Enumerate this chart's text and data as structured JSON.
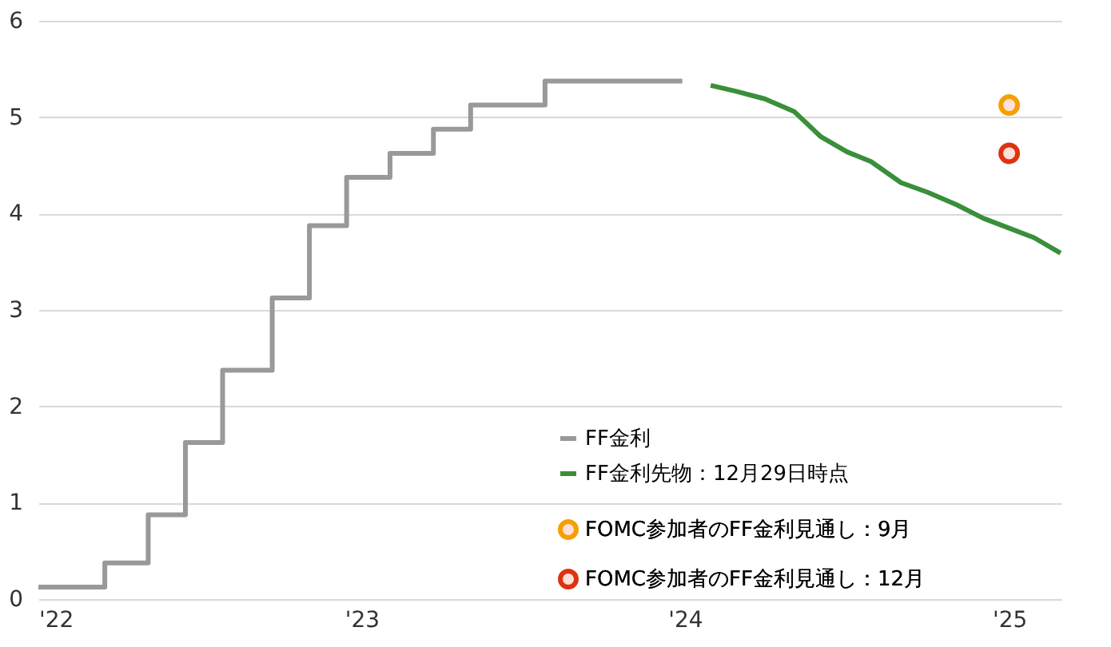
{
  "chart_data": {
    "type": "line",
    "xlim": [
      "2022-01-01",
      "2025-03-01"
    ],
    "xticks": [
      {
        "value": "2022-01-01",
        "label": "'22"
      },
      {
        "value": "2023-01-01",
        "label": "'23"
      },
      {
        "value": "2024-01-01",
        "label": "'24"
      },
      {
        "value": "2025-01-01",
        "label": "'25"
      }
    ],
    "ylim": [
      0,
      6
    ],
    "yticks": [
      0,
      1,
      2,
      3,
      4,
      5,
      6
    ],
    "grid": "y",
    "legend": "bottom right",
    "series": [
      {
        "name": "FF金利",
        "type": "step",
        "color": "#999999",
        "x": [
          "2022-01-01",
          "2022-03-17",
          "2022-05-05",
          "2022-06-16",
          "2022-07-28",
          "2022-09-22",
          "2022-11-03",
          "2022-12-15",
          "2023-02-02",
          "2023-03-23",
          "2023-05-04",
          "2023-07-27",
          "2023-12-29"
        ],
        "values": [
          0.125,
          0.375,
          0.875,
          1.625,
          2.375,
          3.125,
          3.875,
          4.375,
          4.625,
          4.875,
          5.125,
          5.375,
          5.375
        ]
      },
      {
        "name": "FF金利先物：12月29日時点",
        "color": "#3a8f3a",
        "x": [
          "2024-01-30",
          "2024-02-27",
          "2024-03-31",
          "2024-05-03",
          "2024-06-02",
          "2024-07-02",
          "2024-07-29",
          "2024-09-01",
          "2024-10-01",
          "2024-11-03",
          "2024-12-03",
          "2025-01-29",
          "2025-02-28"
        ],
        "values": [
          5.33,
          5.27,
          5.19,
          5.06,
          4.8,
          4.64,
          4.54,
          4.32,
          4.22,
          4.09,
          3.95,
          3.75,
          3.59
        ]
      },
      {
        "name": "FOMC参加者のFF金利見通し：9月",
        "type": "scatter",
        "color": "#f5a000",
        "marker": "circle",
        "x": [
          "2025-01-01"
        ],
        "values": [
          5.125
        ]
      },
      {
        "name": "FOMC参加者のFF金利見通し：12月",
        "type": "scatter",
        "color": "#dd3311",
        "marker": "circle",
        "x": [
          "2025-01-01"
        ],
        "values": [
          4.625
        ]
      }
    ]
  }
}
